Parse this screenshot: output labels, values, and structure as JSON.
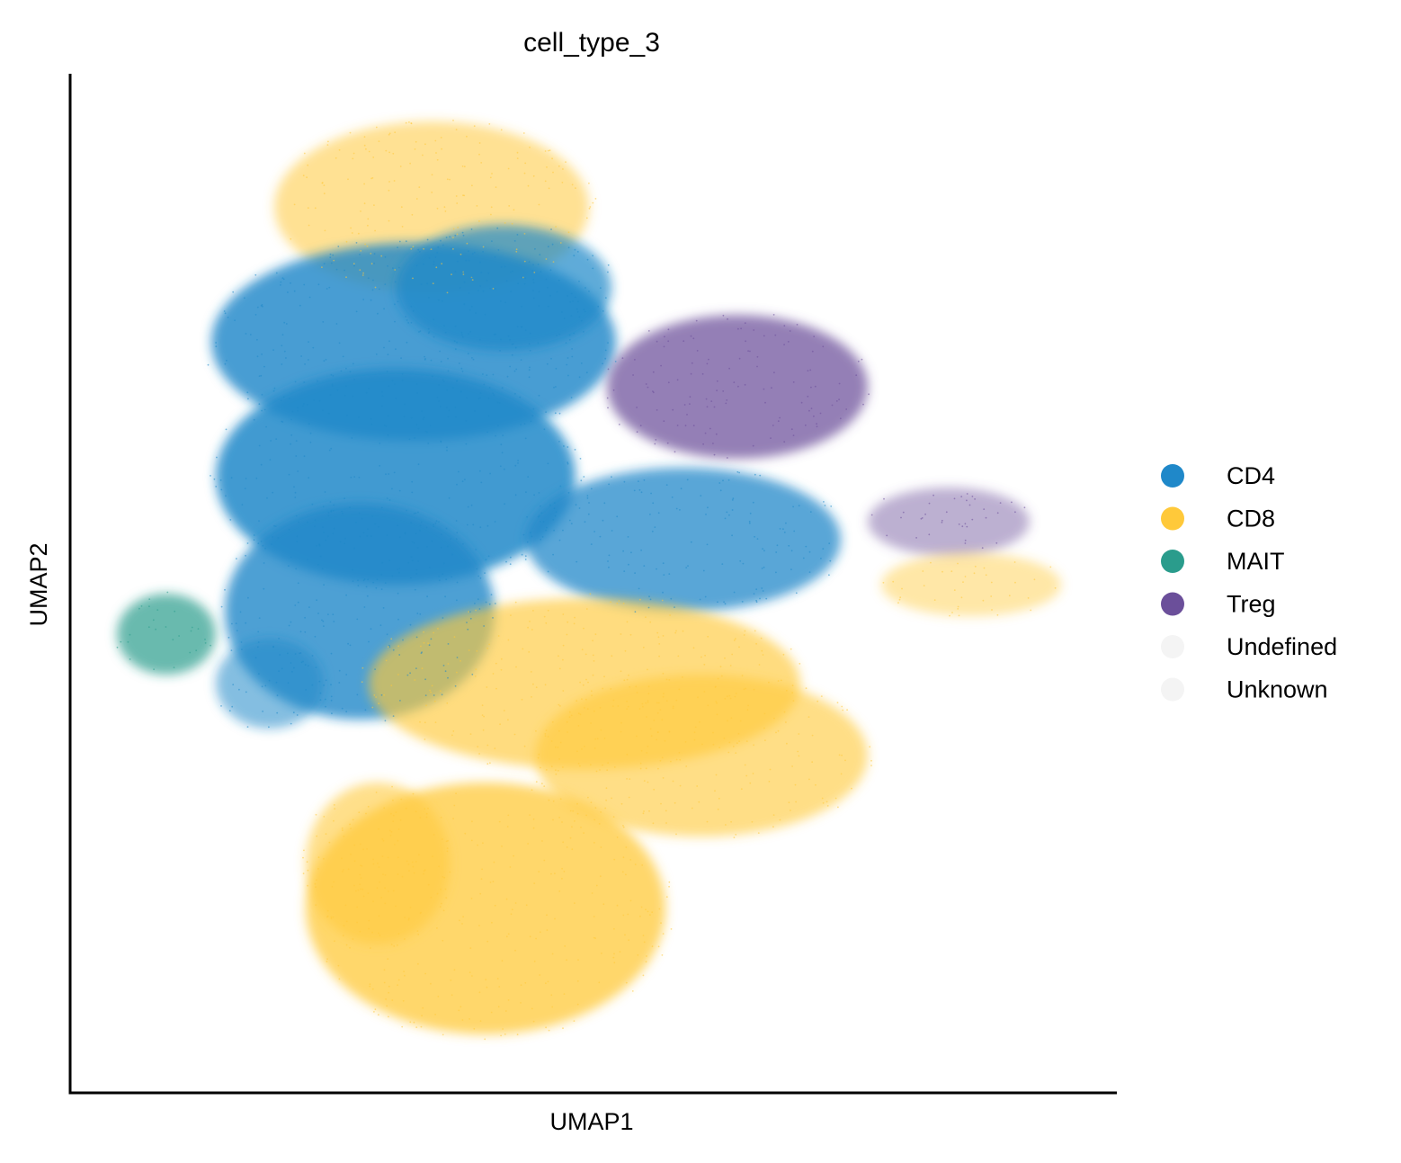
{
  "chart_data": {
    "type": "scatter",
    "title": "cell_type_3",
    "xlabel": "UMAP1",
    "ylabel": "UMAP2",
    "x_ticks": "none",
    "y_ticks": "none",
    "grid": false,
    "legend_position": "right",
    "categories": [
      "CD4",
      "CD8",
      "MAIT",
      "Treg",
      "Undefined",
      "Unknown"
    ],
    "colors": {
      "CD4": "#1f88c9",
      "CD8": "#ffc93a",
      "MAIT": "#2a9c8c",
      "Treg": "#6b4f9a",
      "Undefined": "#f4f4f4",
      "Unknown": "#f4f4f4"
    }
  }
}
